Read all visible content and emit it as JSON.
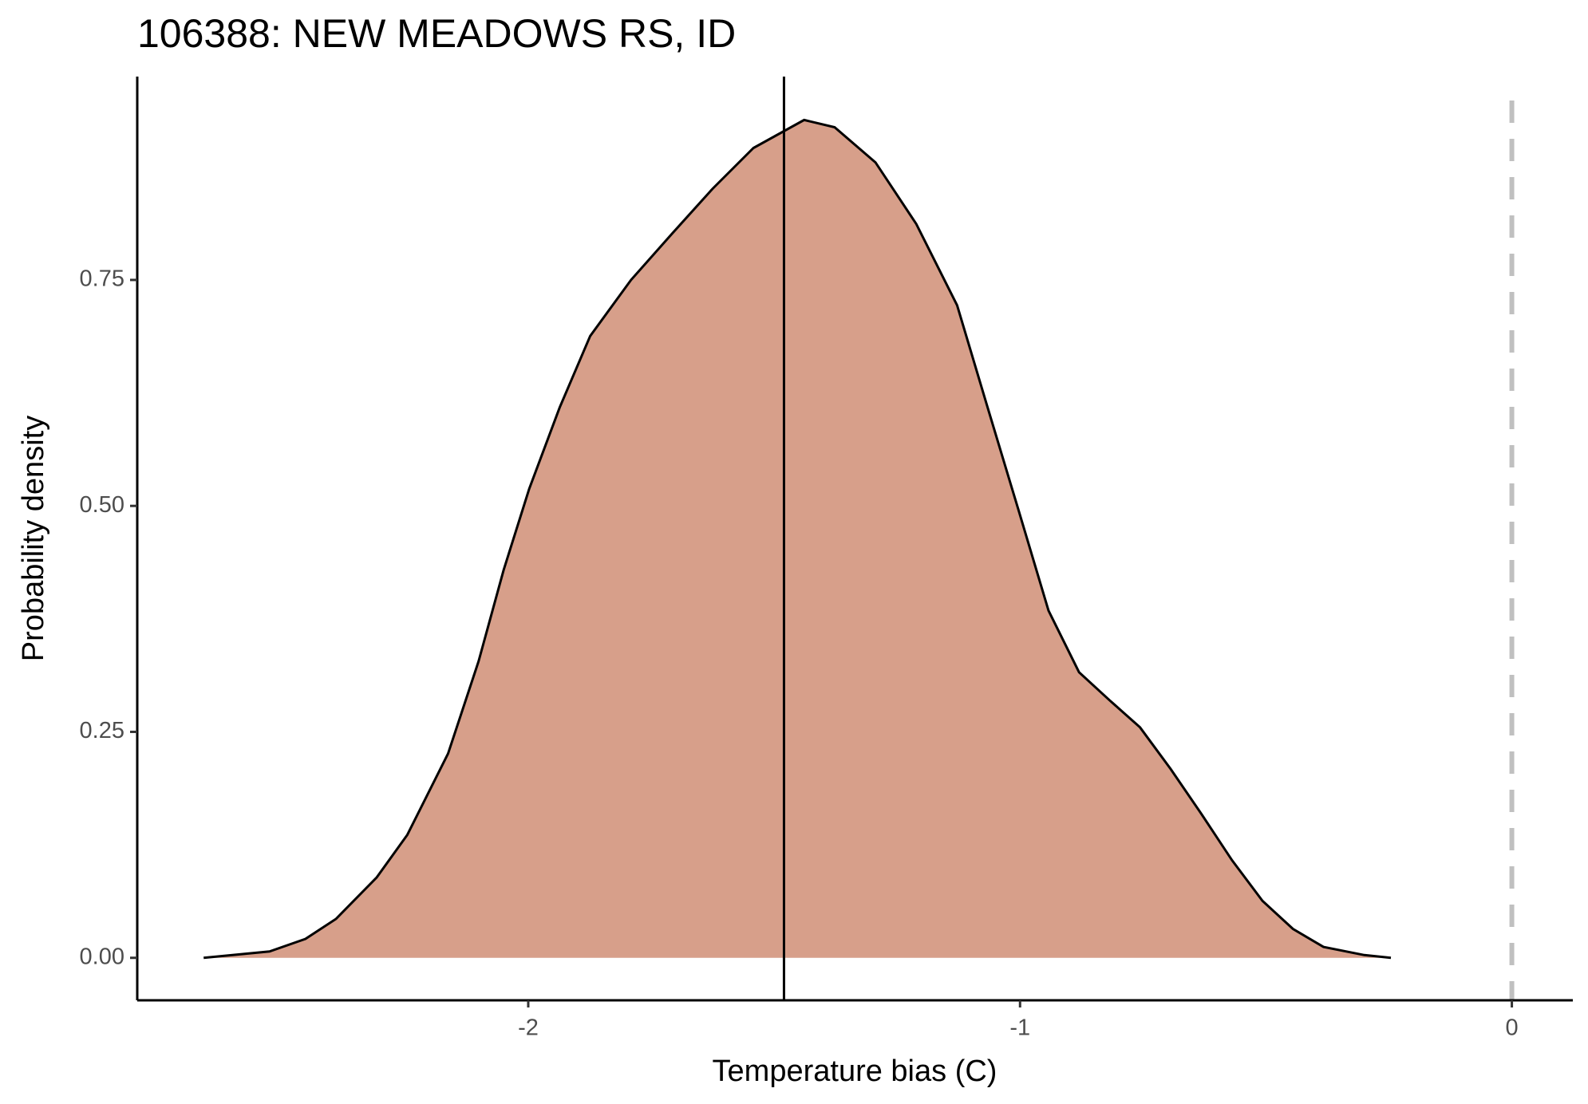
{
  "chart_data": {
    "type": "density",
    "title": "106388: NEW MEADOWS RS, ID",
    "xlabel": "Temperature bias (C)",
    "ylabel": "Probability density",
    "x": [
      -2.66,
      -2.526,
      -2.453,
      -2.391,
      -2.308,
      -2.246,
      -2.163,
      -2.101,
      -2.05,
      -1.998,
      -1.936,
      -1.874,
      -1.791,
      -1.708,
      -1.625,
      -1.542,
      -1.439,
      -1.377,
      -1.294,
      -1.211,
      -1.128,
      -1.066,
      -1.004,
      -0.942,
      -0.88,
      -0.818,
      -0.756,
      -0.694,
      -0.631,
      -0.569,
      -0.507,
      -0.445,
      -0.383,
      -0.3,
      -0.246
    ],
    "values": [
      0,
      0.007,
      0.021,
      0.043,
      0.089,
      0.136,
      0.226,
      0.328,
      0.429,
      0.519,
      0.609,
      0.688,
      0.75,
      0.801,
      0.851,
      0.896,
      0.927,
      0.919,
      0.88,
      0.812,
      0.722,
      0.609,
      0.497,
      0.384,
      0.316,
      0.285,
      0.255,
      0.209,
      0.159,
      0.108,
      0.063,
      0.032,
      0.012,
      0.003,
      0
    ],
    "fill": "#d79f8a",
    "line_color": "#000000",
    "mean_line": -1.48,
    "ref_line": 0,
    "ref_color": "#c0c0c0",
    "xlim": [
      -2.795,
      0.124
    ],
    "ylim": [
      -0.047,
      0.975
    ],
    "xticks": [
      -2,
      -1,
      0
    ],
    "yticks": [
      {
        "value": 0,
        "label": "0.00"
      },
      {
        "value": 0.25,
        "label": "0.25"
      },
      {
        "value": 0.5,
        "label": "0.50"
      },
      {
        "value": 0.75,
        "label": "0.75"
      }
    ]
  }
}
